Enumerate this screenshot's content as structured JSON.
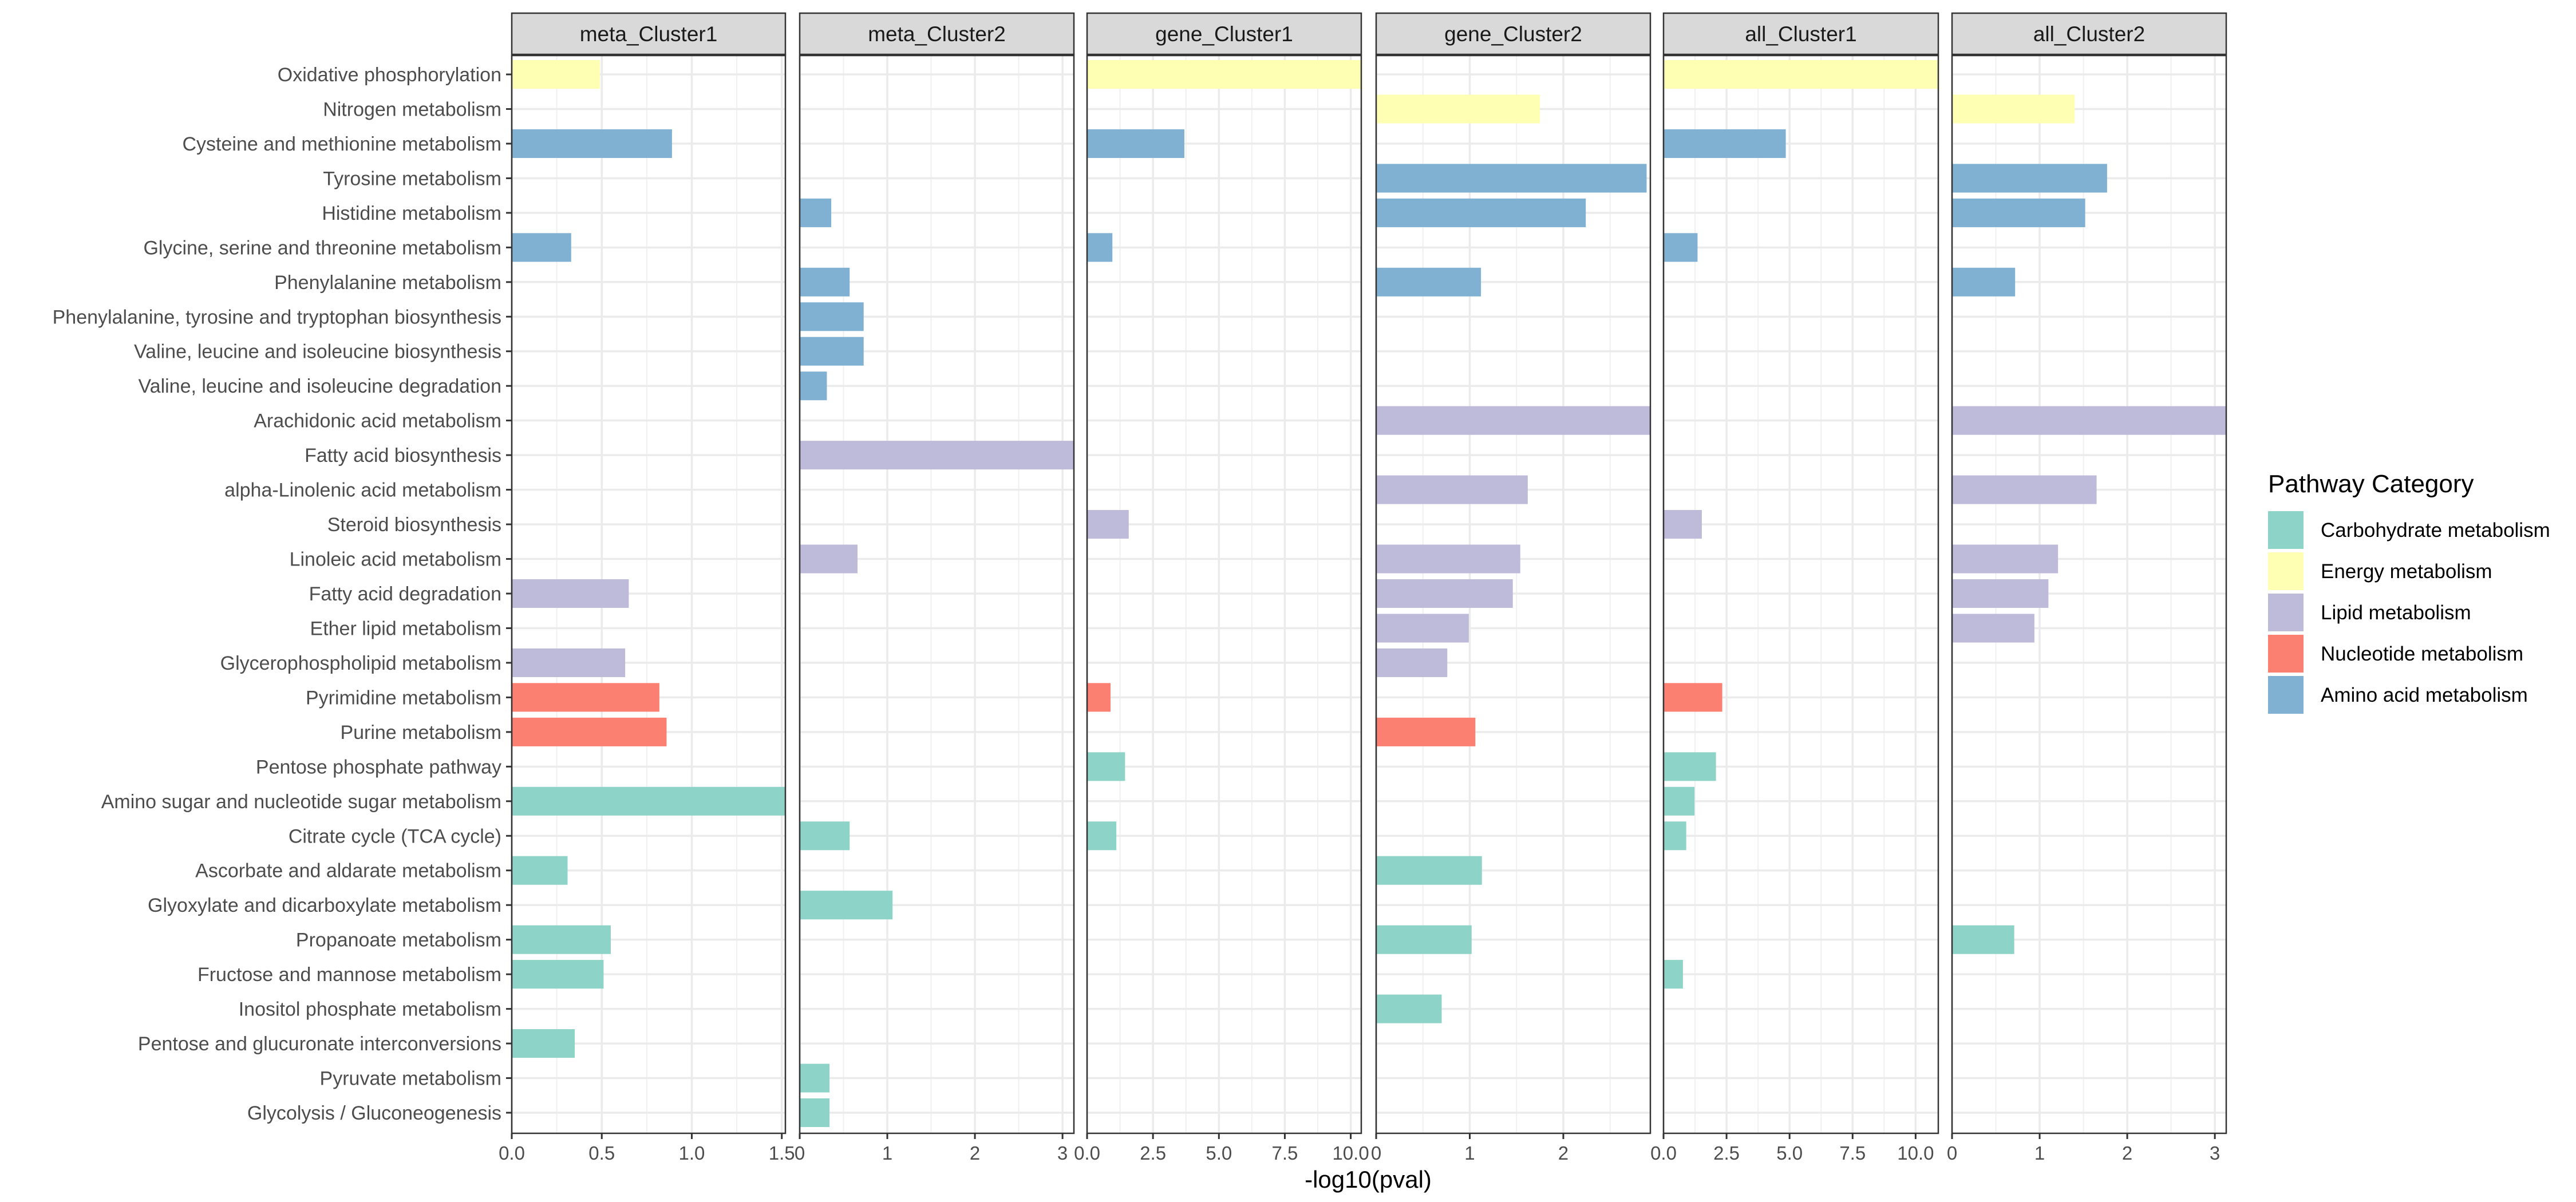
{
  "chart_data": {
    "type": "bar",
    "orientation": "horizontal",
    "title": "",
    "xlabel": "-log10(pval)",
    "ylabel": "",
    "grid": true,
    "legend_position": "right",
    "legend": {
      "title": "Pathway Category",
      "entries": [
        {
          "name": "Carbohydrate metabolism",
          "color": "#8dd3c7"
        },
        {
          "name": "Energy metabolism",
          "color": "#ffffb3"
        },
        {
          "name": "Lipid metabolism",
          "color": "#bebada"
        },
        {
          "name": "Nucleotide metabolism",
          "color": "#fb8072"
        },
        {
          "name": "Amino acid metabolism",
          "color": "#80b1d3"
        }
      ]
    },
    "categories": [
      {
        "name": "Oxidative phosphorylation",
        "group": "Energy metabolism"
      },
      {
        "name": "Nitrogen metabolism",
        "group": "Energy metabolism"
      },
      {
        "name": "Cysteine and methionine metabolism",
        "group": "Amino acid metabolism"
      },
      {
        "name": "Tyrosine metabolism",
        "group": "Amino acid metabolism"
      },
      {
        "name": "Histidine metabolism",
        "group": "Amino acid metabolism"
      },
      {
        "name": "Glycine, serine and threonine metabolism",
        "group": "Amino acid metabolism"
      },
      {
        "name": "Phenylalanine metabolism",
        "group": "Amino acid metabolism"
      },
      {
        "name": "Phenylalanine, tyrosine and tryptophan biosynthesis",
        "group": "Amino acid metabolism"
      },
      {
        "name": "Valine, leucine and isoleucine biosynthesis",
        "group": "Amino acid metabolism"
      },
      {
        "name": "Valine, leucine and isoleucine degradation",
        "group": "Amino acid metabolism"
      },
      {
        "name": "Arachidonic acid metabolism",
        "group": "Lipid metabolism"
      },
      {
        "name": "Fatty acid biosynthesis",
        "group": "Lipid metabolism"
      },
      {
        "name": "alpha-Linolenic acid metabolism",
        "group": "Lipid metabolism"
      },
      {
        "name": "Steroid biosynthesis",
        "group": "Lipid metabolism"
      },
      {
        "name": "Linoleic acid metabolism",
        "group": "Lipid metabolism"
      },
      {
        "name": "Fatty acid degradation",
        "group": "Lipid metabolism"
      },
      {
        "name": "Ether lipid metabolism",
        "group": "Lipid metabolism"
      },
      {
        "name": "Glycerophospholipid metabolism",
        "group": "Lipid metabolism"
      },
      {
        "name": "Pyrimidine metabolism",
        "group": "Nucleotide metabolism"
      },
      {
        "name": "Purine metabolism",
        "group": "Nucleotide metabolism"
      },
      {
        "name": "Pentose phosphate pathway",
        "group": "Carbohydrate metabolism"
      },
      {
        "name": "Amino sugar and nucleotide sugar metabolism",
        "group": "Carbohydrate metabolism"
      },
      {
        "name": "Citrate cycle (TCA cycle)",
        "group": "Carbohydrate metabolism"
      },
      {
        "name": "Ascorbate and aldarate metabolism",
        "group": "Carbohydrate metabolism"
      },
      {
        "name": "Glyoxylate and dicarboxylate metabolism",
        "group": "Carbohydrate metabolism"
      },
      {
        "name": "Propanoate metabolism",
        "group": "Carbohydrate metabolism"
      },
      {
        "name": "Fructose and mannose metabolism",
        "group": "Carbohydrate metabolism"
      },
      {
        "name": "Inositol phosphate metabolism",
        "group": "Carbohydrate metabolism"
      },
      {
        "name": "Pentose and glucuronate interconversions",
        "group": "Carbohydrate metabolism"
      },
      {
        "name": "Pyruvate metabolism",
        "group": "Carbohydrate metabolism"
      },
      {
        "name": "Glycolysis / Gluconeogenesis",
        "group": "Carbohydrate metabolism"
      }
    ],
    "panels": [
      {
        "name": "meta_Cluster1",
        "xlim": [
          0,
          1.52
        ],
        "ticks": [
          0,
          0.5,
          1.0,
          1.5
        ],
        "tick_labels": [
          "0.0",
          "0.5",
          "1.0",
          "1.5"
        ],
        "values": {
          "Oxidative phosphorylation": 0.49,
          "Cysteine and methionine metabolism": 0.89,
          "Glycine, serine and threonine metabolism": 0.33,
          "Fatty acid degradation": 0.65,
          "Glycerophospholipid metabolism": 0.63,
          "Pyrimidine metabolism": 0.82,
          "Purine metabolism": 0.86,
          "Amino sugar and nucleotide sugar metabolism": 1.52,
          "Ascorbate and aldarate metabolism": 0.31,
          "Propanoate metabolism": 0.55,
          "Fructose and mannose metabolism": 0.51,
          "Pentose and glucuronate interconversions": 0.35
        }
      },
      {
        "name": "meta_Cluster2",
        "xlim": [
          0,
          3.13
        ],
        "ticks": [
          0,
          1,
          2,
          3
        ],
        "tick_labels": [
          "0",
          "1",
          "2",
          "3"
        ],
        "values": {
          "Histidine metabolism": 0.36,
          "Phenylalanine metabolism": 0.57,
          "Phenylalanine, tyrosine and tryptophan biosynthesis": 0.73,
          "Valine, leucine and isoleucine biosynthesis": 0.73,
          "Valine, leucine and isoleucine degradation": 0.31,
          "Fatty acid biosynthesis": 3.13,
          "Linoleic acid metabolism": 0.66,
          "Citrate cycle (TCA cycle)": 0.57,
          "Glyoxylate and dicarboxylate metabolism": 1.06,
          "Pyruvate metabolism": 0.34,
          "Glycolysis / Gluconeogenesis": 0.34
        }
      },
      {
        "name": "gene_Cluster1",
        "xlim": [
          0,
          10.4
        ],
        "ticks": [
          0,
          2.5,
          5.0,
          7.5,
          10.0
        ],
        "tick_labels": [
          "0.0",
          "2.5",
          "5.0",
          "7.5",
          "10.0"
        ],
        "values": {
          "Oxidative phosphorylation": 10.4,
          "Cysteine and methionine metabolism": 3.69,
          "Glycine, serine and threonine metabolism": 0.96,
          "Steroid biosynthesis": 1.58,
          "Pyrimidine metabolism": 0.89,
          "Pentose phosphate pathway": 1.44,
          "Citrate cycle (TCA cycle)": 1.11
        }
      },
      {
        "name": "gene_Cluster2",
        "xlim": [
          0,
          2.93
        ],
        "ticks": [
          0,
          1,
          2
        ],
        "tick_labels": [
          "0",
          "1",
          "2"
        ],
        "values": {
          "Nitrogen metabolism": 1.75,
          "Tyrosine metabolism": 2.89,
          "Histidine metabolism": 2.24,
          "Phenylalanine metabolism": 1.12,
          "Arachidonic acid metabolism": 2.93,
          "alpha-Linolenic acid metabolism": 1.62,
          "Linoleic acid metabolism": 1.54,
          "Fatty acid degradation": 1.46,
          "Ether lipid metabolism": 0.99,
          "Glycerophospholipid metabolism": 0.76,
          "Purine metabolism": 1.06,
          "Ascorbate and aldarate metabolism": 1.13,
          "Propanoate metabolism": 1.02,
          "Inositol phosphate metabolism": 0.7
        }
      },
      {
        "name": "all_Cluster1",
        "xlim": [
          0,
          10.9
        ],
        "ticks": [
          0,
          2.5,
          5.0,
          7.5,
          10.0
        ],
        "tick_labels": [
          "0.0",
          "2.5",
          "5.0",
          "7.5",
          "10.0"
        ],
        "values": {
          "Oxidative phosphorylation": 10.9,
          "Cysteine and methionine metabolism": 4.85,
          "Glycine, serine and threonine metabolism": 1.35,
          "Steroid biosynthesis": 1.52,
          "Pyrimidine metabolism": 2.33,
          "Pentose phosphate pathway": 2.08,
          "Amino sugar and nucleotide sugar metabolism": 1.23,
          "Citrate cycle (TCA cycle)": 0.9,
          "Fructose and mannose metabolism": 0.77
        }
      },
      {
        "name": "all_Cluster2",
        "xlim": [
          0,
          3.13
        ],
        "ticks": [
          0,
          1,
          2,
          3
        ],
        "tick_labels": [
          "0",
          "1",
          "2",
          "3"
        ],
        "values": {
          "Nitrogen metabolism": 1.4,
          "Tyrosine metabolism": 1.77,
          "Histidine metabolism": 1.52,
          "Phenylalanine metabolism": 0.72,
          "Arachidonic acid metabolism": 3.13,
          "alpha-Linolenic acid metabolism": 1.65,
          "Linoleic acid metabolism": 1.21,
          "Fatty acid degradation": 1.1,
          "Ether lipid metabolism": 0.94,
          "Propanoate metabolism": 0.71
        }
      }
    ]
  }
}
